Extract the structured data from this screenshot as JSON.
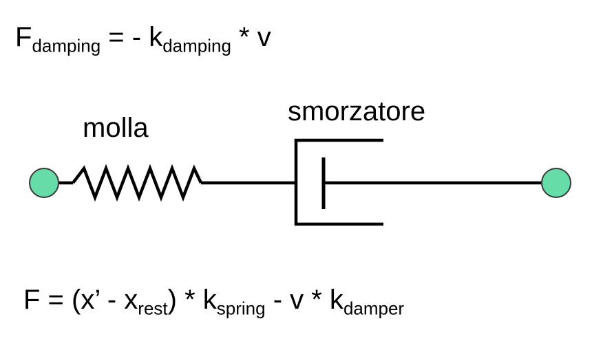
{
  "formula_damping": {
    "lhs": "F",
    "lhs_sub": "damping",
    "equals": " = - k",
    "k_sub": "damping",
    "tail": " * v"
  },
  "labels": {
    "spring": "molla",
    "damper": "smorzatore"
  },
  "formula_total": {
    "part1": "F = (x’ - x",
    "rest_sub": "rest",
    "part2": ") * k",
    "spring_sub": "spring",
    "part3": " - v * k",
    "damper_sub": "damper"
  },
  "colors": {
    "node_fill": "#66dda8",
    "node_stroke": "#3a3a3a",
    "line": "#000000",
    "text": "#000000"
  }
}
